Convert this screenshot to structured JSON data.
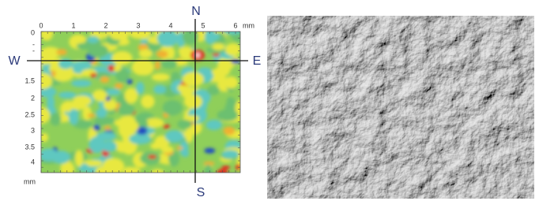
{
  "compass": {
    "north": "N",
    "south": "S",
    "west": "W",
    "east": "E"
  },
  "x_axis": {
    "ticks": [
      "0",
      "1",
      "2",
      "3",
      "4",
      "5",
      "6"
    ],
    "unit": "mm"
  },
  "y_axis": {
    "ticks": [
      "0",
      "-",
      "-",
      "1.5",
      "2",
      "2.5",
      "3",
      "3.5",
      "4"
    ],
    "unit": "mm"
  }
}
